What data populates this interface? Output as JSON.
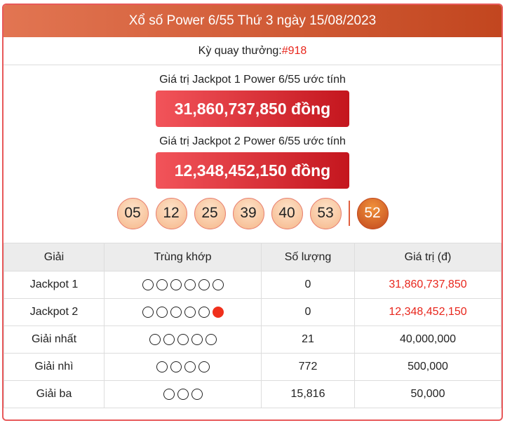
{
  "header": {
    "title": "Xổ số Power 6/55 Thứ 3 ngày 15/08/2023"
  },
  "draw": {
    "label": "Kỳ quay thưởng: ",
    "number": "#918"
  },
  "jackpot1": {
    "label": "Giá trị Jackpot 1 Power 6/55 ước tính",
    "value": "31,860,737,850 đồng"
  },
  "jackpot2": {
    "label": "Giá trị Jackpot 2 Power 6/55 ước tính",
    "value": "12,348,452,150 đồng"
  },
  "balls": [
    "05",
    "12",
    "25",
    "39",
    "40",
    "53"
  ],
  "power_ball": "52",
  "table": {
    "headers": [
      "Giải",
      "Trùng khớp",
      "Số lượng",
      "Giá trị (đ)"
    ],
    "rows": [
      {
        "prize": "Jackpot 1",
        "match": 6,
        "extra": false,
        "count": "0",
        "value": "31,860,737,850",
        "highlight": true
      },
      {
        "prize": "Jackpot 2",
        "match": 5,
        "extra": true,
        "count": "0",
        "value": "12,348,452,150",
        "highlight": true
      },
      {
        "prize": "Giải nhất",
        "match": 5,
        "extra": false,
        "count": "21",
        "value": "40,000,000",
        "highlight": false
      },
      {
        "prize": "Giải nhì",
        "match": 4,
        "extra": false,
        "count": "772",
        "value": "500,000",
        "highlight": false
      },
      {
        "prize": "Giải ba",
        "match": 3,
        "extra": false,
        "count": "15,816",
        "value": "50,000",
        "highlight": false
      }
    ]
  }
}
